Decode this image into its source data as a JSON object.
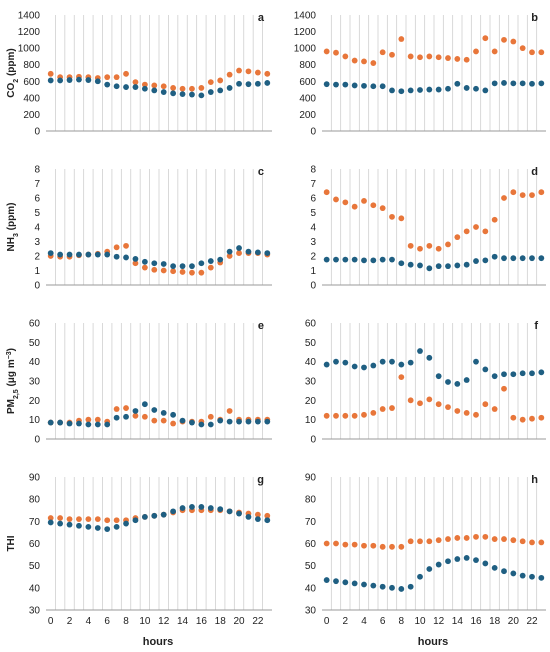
{
  "colors": {
    "series_a": "#1f5f82",
    "series_b": "#e8763a",
    "grid": "#d0d0d0",
    "axis": "#9a9a9a"
  },
  "chart_data": [
    {
      "panel": "a",
      "type": "scatter",
      "ylabel": "CO2 (ppm)",
      "ylabel_main": "CO",
      "ylabel_sub": "2",
      "ylabel_tail": " (ppm)",
      "ylim": [
        0,
        1400
      ],
      "yticks": [
        0,
        200,
        400,
        600,
        800,
        1000,
        1200,
        1400
      ],
      "grid": "vertical",
      "x": [
        0,
        1,
        2,
        3,
        4,
        5,
        6,
        7,
        8,
        9,
        10,
        11,
        12,
        13,
        14,
        15,
        16,
        17,
        18,
        19,
        20,
        21,
        22,
        23
      ],
      "series": [
        {
          "values": [
            610,
            610,
            615,
            620,
            615,
            600,
            560,
            540,
            530,
            530,
            510,
            490,
            470,
            455,
            445,
            440,
            430,
            470,
            490,
            520,
            570,
            565,
            570,
            580
          ]
        },
        {
          "values": [
            690,
            650,
            650,
            655,
            650,
            640,
            650,
            650,
            690,
            590,
            560,
            550,
            540,
            520,
            510,
            510,
            520,
            590,
            610,
            680,
            730,
            720,
            705,
            690
          ]
        }
      ]
    },
    {
      "panel": "b",
      "type": "scatter",
      "ylabel": "",
      "ylim": [
        0,
        1400
      ],
      "yticks": [
        0,
        200,
        400,
        600,
        800,
        1000,
        1200,
        1400
      ],
      "grid": "vertical",
      "x": [
        0,
        1,
        2,
        3,
        4,
        5,
        6,
        7,
        8,
        9,
        10,
        11,
        12,
        13,
        14,
        15,
        16,
        17,
        18,
        19,
        20,
        21,
        22,
        23
      ],
      "series": [
        {
          "values": [
            565,
            560,
            560,
            550,
            545,
            540,
            540,
            490,
            480,
            490,
            495,
            500,
            500,
            510,
            570,
            520,
            510,
            490,
            575,
            580,
            575,
            575,
            570,
            575
          ]
        },
        {
          "values": [
            960,
            945,
            900,
            850,
            840,
            820,
            950,
            920,
            1110,
            900,
            890,
            900,
            890,
            880,
            870,
            860,
            960,
            1120,
            960,
            1100,
            1080,
            1000,
            950,
            950
          ]
        }
      ]
    },
    {
      "panel": "c",
      "type": "scatter",
      "ylabel": "NH3 (ppm)",
      "ylabel_main": "NH",
      "ylabel_sub": "3",
      "ylabel_tail": " (ppm)",
      "ylim": [
        0,
        8
      ],
      "yticks": [
        0,
        1,
        2,
        3,
        4,
        5,
        6,
        7,
        8
      ],
      "grid": "vertical",
      "x": [
        0,
        1,
        2,
        3,
        4,
        5,
        6,
        7,
        8,
        9,
        10,
        11,
        12,
        13,
        14,
        15,
        16,
        17,
        18,
        19,
        20,
        21,
        22,
        23
      ],
      "series": [
        {
          "values": [
            2.2,
            2.1,
            2.1,
            2.1,
            2.1,
            2.1,
            2.1,
            1.95,
            1.9,
            1.8,
            1.6,
            1.5,
            1.45,
            1.3,
            1.3,
            1.3,
            1.5,
            1.65,
            1.75,
            2.3,
            2.55,
            2.3,
            2.25,
            2.2
          ]
        },
        {
          "values": [
            2.0,
            1.95,
            1.95,
            2.05,
            2.1,
            2.15,
            2.3,
            2.6,
            2.7,
            1.5,
            1.2,
            1.05,
            1.0,
            0.95,
            0.9,
            0.85,
            0.85,
            1.2,
            1.55,
            2.0,
            2.2,
            2.2,
            2.2,
            2.1
          ]
        }
      ]
    },
    {
      "panel": "d",
      "type": "scatter",
      "ylabel": "",
      "ylim": [
        0,
        8
      ],
      "yticks": [
        0,
        1,
        2,
        3,
        4,
        5,
        6,
        7,
        8
      ],
      "grid": "vertical",
      "x": [
        0,
        1,
        2,
        3,
        4,
        5,
        6,
        7,
        8,
        9,
        10,
        11,
        12,
        13,
        14,
        15,
        16,
        17,
        18,
        19,
        20,
        21,
        22,
        23
      ],
      "series": [
        {
          "values": [
            1.75,
            1.75,
            1.75,
            1.75,
            1.7,
            1.7,
            1.75,
            1.75,
            1.5,
            1.4,
            1.35,
            1.15,
            1.3,
            1.3,
            1.35,
            1.4,
            1.65,
            1.7,
            1.95,
            1.85,
            1.85,
            1.85,
            1.85,
            1.85
          ]
        },
        {
          "values": [
            6.4,
            5.9,
            5.7,
            5.4,
            5.8,
            5.5,
            5.3,
            4.7,
            4.6,
            2.7,
            2.5,
            2.7,
            2.5,
            2.8,
            3.3,
            3.7,
            4.0,
            3.7,
            4.5,
            6.0,
            6.4,
            6.2,
            6.2,
            6.4
          ]
        }
      ]
    },
    {
      "panel": "e",
      "type": "scatter",
      "ylabel": "PM2.5 (μg m−3)",
      "ylabel_main": "PM",
      "ylabel_sub": "2,5",
      "ylabel_tail": " (μg m",
      "ylabel_sup": "−3",
      "ylabel_end": ")",
      "ylim": [
        0,
        60
      ],
      "yticks": [
        0,
        10,
        20,
        30,
        40,
        50,
        60
      ],
      "grid": "vertical",
      "x": [
        0,
        1,
        2,
        3,
        4,
        5,
        6,
        7,
        8,
        9,
        10,
        11,
        12,
        13,
        14,
        15,
        16,
        17,
        18,
        19,
        20,
        21,
        22,
        23
      ],
      "series": [
        {
          "values": [
            8.5,
            8.5,
            8,
            8,
            7.5,
            7.5,
            7.5,
            11,
            11.5,
            14.5,
            18,
            15,
            13.5,
            12.5,
            9.5,
            8.5,
            7.5,
            7.5,
            9.5,
            9,
            9,
            9,
            9,
            9
          ]
        },
        {
          "values": [
            8.5,
            8.5,
            8.5,
            9.5,
            10,
            10,
            9,
            15.5,
            16,
            12,
            11.5,
            9.5,
            9.5,
            8,
            9,
            9,
            9,
            11.5,
            10,
            14.5,
            10,
            10,
            10,
            10
          ]
        }
      ]
    },
    {
      "panel": "f",
      "type": "scatter",
      "ylabel": "",
      "ylim": [
        0,
        60
      ],
      "yticks": [
        0,
        10,
        20,
        30,
        40,
        50,
        60
      ],
      "grid": "vertical",
      "x": [
        0,
        1,
        2,
        3,
        4,
        5,
        6,
        7,
        8,
        9,
        10,
        11,
        12,
        13,
        14,
        15,
        16,
        17,
        18,
        19,
        20,
        21,
        22,
        23
      ],
      "series": [
        {
          "values": [
            38.5,
            40,
            39.5,
            37.5,
            37,
            38,
            40,
            40,
            38.5,
            39.5,
            45.5,
            42,
            32.5,
            29.5,
            28.5,
            30.5,
            40,
            36,
            32.5,
            33.5,
            33.5,
            34,
            34,
            34.5
          ]
        },
        {
          "values": [
            12,
            12,
            12,
            12,
            12.5,
            13.5,
            15.5,
            16,
            32,
            20,
            18.5,
            20.5,
            18,
            16.5,
            14.5,
            13.5,
            12.5,
            18,
            15.5,
            26,
            11,
            10,
            10.5,
            11
          ]
        }
      ]
    },
    {
      "panel": "g",
      "type": "scatter",
      "ylabel": "THI",
      "ylim": [
        30,
        90
      ],
      "yticks": [
        30,
        40,
        50,
        60,
        70,
        80,
        90
      ],
      "grid": "vertical",
      "x": [
        0,
        1,
        2,
        3,
        4,
        5,
        6,
        7,
        8,
        9,
        10,
        11,
        12,
        13,
        14,
        15,
        16,
        17,
        18,
        19,
        20,
        21,
        22,
        23
      ],
      "series": [
        {
          "values": [
            69.5,
            69,
            68.5,
            68,
            67.5,
            67,
            66.5,
            67.5,
            69,
            70.5,
            72,
            72.5,
            73,
            74.5,
            76,
            76.5,
            76.5,
            76,
            75.5,
            74.5,
            73.5,
            72,
            71,
            70.5
          ]
        },
        {
          "values": [
            71.5,
            71.5,
            71,
            71,
            71,
            71,
            70.5,
            70.5,
            70.5,
            71.5,
            72,
            72.5,
            73,
            74,
            75,
            75,
            75,
            75,
            75,
            74.5,
            74,
            73.5,
            73,
            72.5
          ]
        }
      ]
    },
    {
      "panel": "h",
      "type": "scatter",
      "ylabel": "",
      "ylim": [
        30,
        90
      ],
      "yticks": [
        30,
        40,
        50,
        60,
        70,
        80,
        90
      ],
      "grid": "vertical",
      "x": [
        0,
        1,
        2,
        3,
        4,
        5,
        6,
        7,
        8,
        9,
        10,
        11,
        12,
        13,
        14,
        15,
        16,
        17,
        18,
        19,
        20,
        21,
        22,
        23
      ],
      "series": [
        {
          "values": [
            43.5,
            43,
            42.5,
            42,
            41.5,
            41,
            40.5,
            40,
            39.5,
            40.5,
            45,
            48.5,
            50.5,
            52,
            53,
            53.5,
            52.5,
            51,
            49,
            47.5,
            46.5,
            45.5,
            45,
            44.5
          ]
        },
        {
          "values": [
            60,
            60,
            59.5,
            59.5,
            59,
            59,
            58.5,
            58.5,
            58.5,
            61,
            61,
            61,
            61.5,
            62,
            62.5,
            62.5,
            63,
            63,
            62,
            62,
            61.5,
            61,
            60.5,
            60.5
          ]
        }
      ]
    }
  ],
  "xaxis": {
    "title": "hours",
    "ticks": [
      0,
      2,
      4,
      6,
      8,
      10,
      12,
      14,
      16,
      18,
      20,
      22
    ]
  }
}
